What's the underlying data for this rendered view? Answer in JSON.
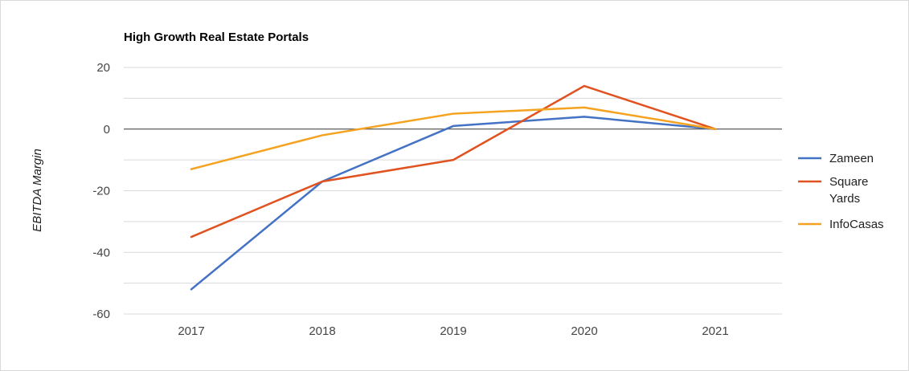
{
  "chart_data": {
    "type": "line",
    "title": "High Growth Real Estate Portals",
    "xlabel": "",
    "ylabel": "EBITDA Margin",
    "categories": [
      "2017",
      "2018",
      "2019",
      "2020",
      "2021"
    ],
    "ylim": [
      -60,
      20
    ],
    "yticks": [
      20,
      0,
      -20,
      -40,
      -60
    ],
    "grid": true,
    "legend_position": "right",
    "series": [
      {
        "name": "Zameen",
        "color": "#4472c4",
        "values": [
          -52,
          -17,
          1,
          4,
          0
        ]
      },
      {
        "name": "Square Yards",
        "legend_lines": [
          "Square",
          "Yards"
        ],
        "color": "#e0521f",
        "values": [
          -35,
          -17,
          -10,
          14,
          0
        ]
      },
      {
        "name": "InfoCasas",
        "color": "#f4a21f",
        "values": [
          -13,
          -2,
          5,
          7,
          0
        ]
      }
    ]
  }
}
